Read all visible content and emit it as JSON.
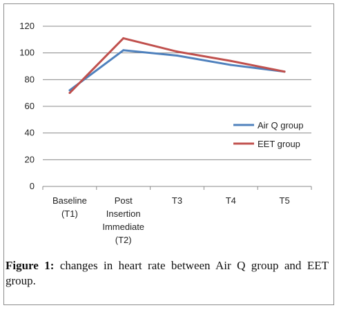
{
  "chart_data": {
    "type": "line",
    "categories": [
      [
        "Baseline",
        "(T1)"
      ],
      [
        "Post",
        "Insertion",
        "Immediate",
        "(T2)"
      ],
      [
        "T3"
      ],
      [
        "T4"
      ],
      [
        "T5"
      ]
    ],
    "series": [
      {
        "name": "Air Q group",
        "color": "#4f81bd",
        "values": [
          72,
          102,
          98,
          91,
          86
        ]
      },
      {
        "name": "EET group",
        "color": "#c0504d",
        "values": [
          70,
          111,
          101,
          94,
          86
        ]
      }
    ],
    "ylim": [
      0,
      120
    ],
    "yticks": [
      0,
      20,
      40,
      60,
      80,
      100,
      120
    ],
    "grid": true,
    "legend": "right",
    "title": "",
    "xlabel": "",
    "ylabel": ""
  },
  "caption": {
    "label": "Figure 1:",
    "text": " changes in heart rate between Air Q group and EET group."
  }
}
